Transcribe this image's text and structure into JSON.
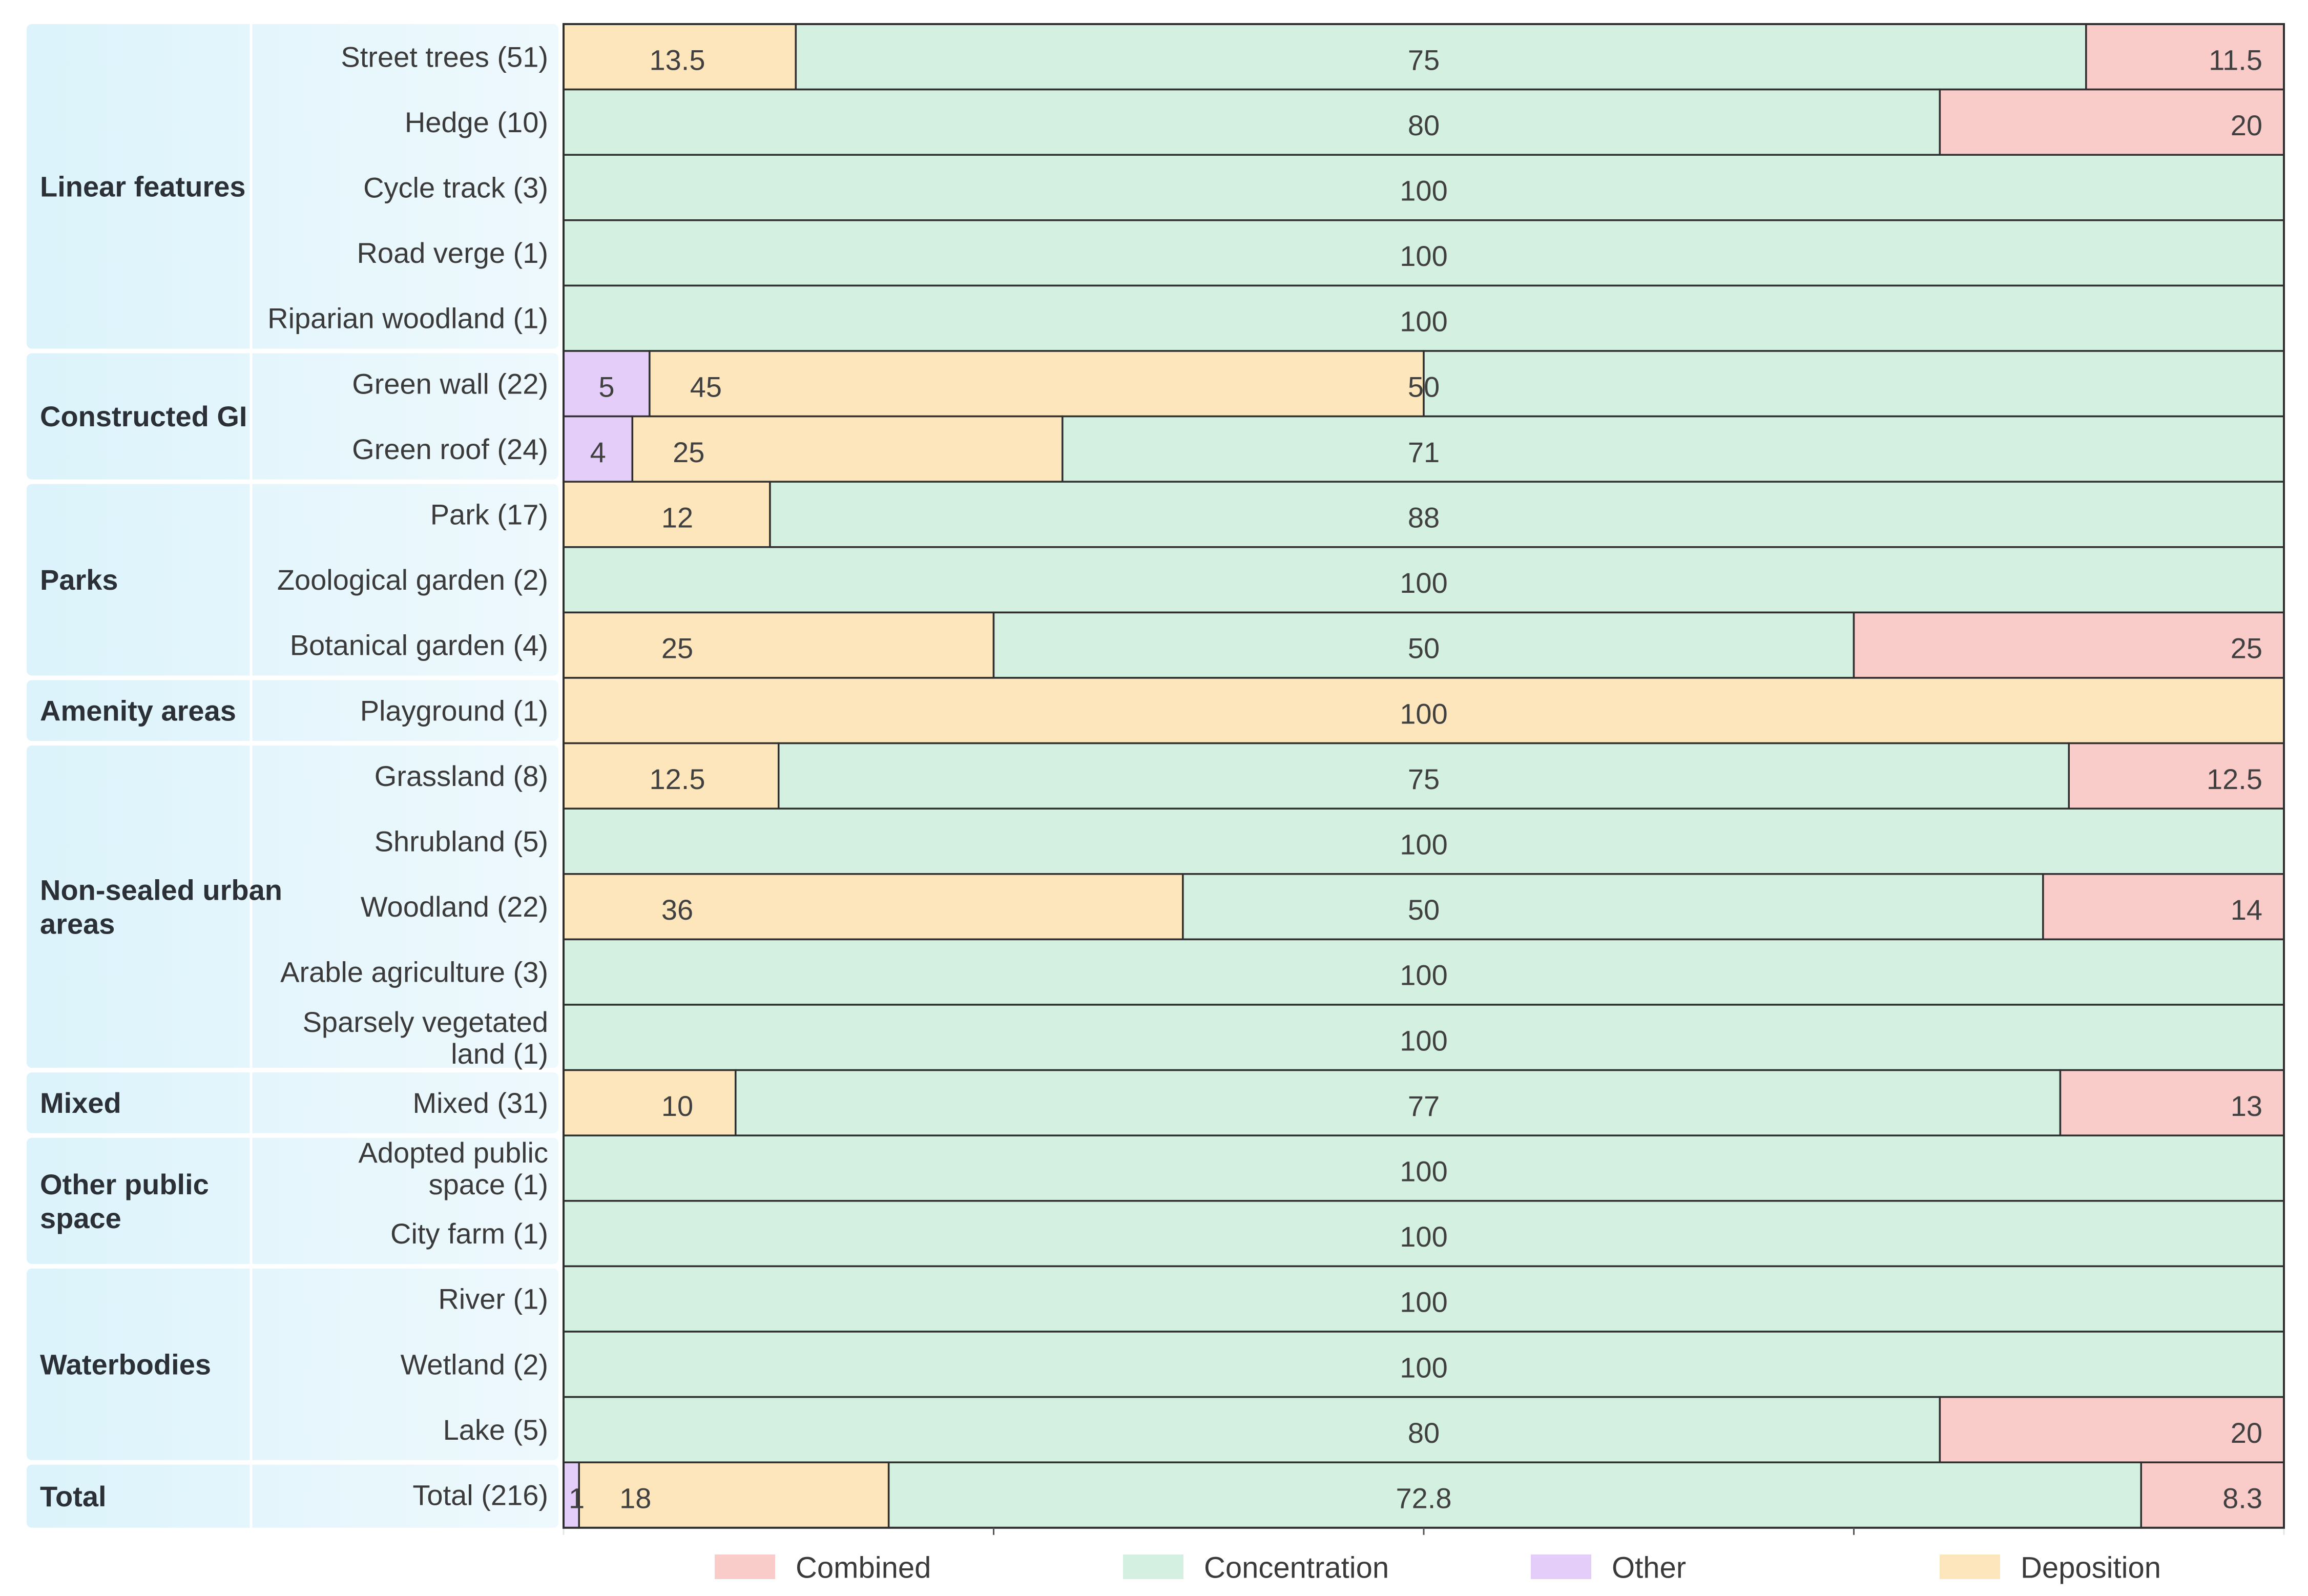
{
  "chart_data": {
    "type": "bar",
    "orientation": "horizontal",
    "stacked": true,
    "percent_stacked": true,
    "xlim": [
      0,
      100
    ],
    "grid": true,
    "legend_position": "bottom",
    "segment_order": [
      "Other",
      "Deposition",
      "Concentration",
      "Combined"
    ],
    "series_colors": {
      "Combined": "#f9cbc9",
      "Concentration": "#d3f0e1",
      "Other": "#e4cdf8",
      "Deposition": "#fde6bc"
    },
    "legend": [
      "Combined",
      "Concentration",
      "Other",
      "Deposition"
    ],
    "groups": [
      {
        "name": "Linear features",
        "rows": [
          {
            "label": "Street trees (51)",
            "values": {
              "Deposition": 13.5,
              "Concentration": 75,
              "Combined": 11.5
            },
            "labels": {
              "Deposition": "13.5",
              "Concentration": "75",
              "Combined": "11.5"
            }
          },
          {
            "label": "Hedge (10)",
            "values": {
              "Concentration": 80,
              "Combined": 20
            },
            "labels": {
              "Concentration": "80",
              "Combined": "20"
            }
          },
          {
            "label": "Cycle track (3)",
            "values": {
              "Concentration": 100
            },
            "labels": {
              "Concentration": "100"
            }
          },
          {
            "label": "Road verge (1)",
            "values": {
              "Concentration": 100
            },
            "labels": {
              "Concentration": "100"
            }
          },
          {
            "label": "Riparian woodland (1)",
            "values": {
              "Concentration": 100
            },
            "labels": {
              "Concentration": "100"
            }
          }
        ]
      },
      {
        "name": "Constructed GI",
        "rows": [
          {
            "label": "Green wall (22)",
            "values": {
              "Other": 5,
              "Deposition": 45,
              "Concentration": 50
            },
            "labels": {
              "Other": "5",
              "Deposition": "45",
              "Concentration": "50"
            }
          },
          {
            "label": "Green roof (24)",
            "values": {
              "Other": 4,
              "Deposition": 25,
              "Concentration": 71
            },
            "labels": {
              "Other": "4",
              "Deposition": "25",
              "Concentration": "71"
            }
          }
        ]
      },
      {
        "name": "Parks",
        "rows": [
          {
            "label": "Park (17)",
            "values": {
              "Deposition": 12,
              "Concentration": 88
            },
            "labels": {
              "Deposition": "12",
              "Concentration": "88"
            }
          },
          {
            "label": "Zoological garden (2)",
            "values": {
              "Concentration": 100
            },
            "labels": {
              "Concentration": "100"
            }
          },
          {
            "label": "Botanical garden (4)",
            "values": {
              "Deposition": 25,
              "Concentration": 50,
              "Combined": 25
            },
            "labels": {
              "Deposition": "25",
              "Concentration": "50",
              "Combined": "25"
            }
          }
        ]
      },
      {
        "name": "Amenity areas",
        "rows": [
          {
            "label": "Playground (1)",
            "values": {
              "Deposition": 100
            },
            "labels": {
              "Deposition": "100"
            }
          }
        ]
      },
      {
        "name": "Non-sealed urban areas",
        "rows": [
          {
            "label": "Grassland (8)",
            "values": {
              "Deposition": 12.5,
              "Concentration": 75,
              "Combined": 12.5
            },
            "labels": {
              "Deposition": "12.5",
              "Concentration": "75",
              "Combined": "12.5"
            }
          },
          {
            "label": "Shrubland (5)",
            "values": {
              "Concentration": 100
            },
            "labels": {
              "Concentration": "100"
            }
          },
          {
            "label": "Woodland (22)",
            "values": {
              "Deposition": 36,
              "Concentration": 50,
              "Combined": 14
            },
            "labels": {
              "Deposition": "36",
              "Concentration": "50",
              "Combined": "14"
            }
          },
          {
            "label": "Arable agriculture (3)",
            "values": {
              "Concentration": 100
            },
            "labels": {
              "Concentration": "100"
            }
          },
          {
            "label": "Sparsely vegetated land (1)",
            "values": {
              "Concentration": 100
            },
            "labels": {
              "Concentration": "100"
            }
          }
        ]
      },
      {
        "name": "Mixed",
        "rows": [
          {
            "label": "Mixed (31)",
            "values": {
              "Deposition": 10,
              "Concentration": 77,
              "Combined": 13
            },
            "labels": {
              "Deposition": "10",
              "Concentration": "77",
              "Combined": "13"
            }
          }
        ]
      },
      {
        "name": "Other public space",
        "rows": [
          {
            "label": "Adopted public space (1)",
            "values": {
              "Concentration": 100
            },
            "labels": {
              "Concentration": "100"
            }
          },
          {
            "label": "City farm (1)",
            "values": {
              "Concentration": 100
            },
            "labels": {
              "Concentration": "100"
            }
          }
        ]
      },
      {
        "name": "Waterbodies",
        "rows": [
          {
            "label": "River (1)",
            "values": {
              "Concentration": 100
            },
            "labels": {
              "Concentration": "100"
            }
          },
          {
            "label": "Wetland (2)",
            "values": {
              "Concentration": 100
            },
            "labels": {
              "Concentration": "100"
            }
          },
          {
            "label": "Lake (5)",
            "values": {
              "Concentration": 80,
              "Combined": 20
            },
            "labels": {
              "Concentration": "80",
              "Combined": "20"
            }
          }
        ]
      },
      {
        "name": "Total",
        "rows": [
          {
            "label": "Total (216)",
            "values": {
              "Other": 0.9,
              "Deposition": 18,
              "Concentration": 72.8,
              "Combined": 8.3
            },
            "labels": {
              "Other": "1",
              "Deposition": "18",
              "Concentration": "72.8",
              "Combined": "8.3"
            }
          }
        ]
      }
    ]
  }
}
